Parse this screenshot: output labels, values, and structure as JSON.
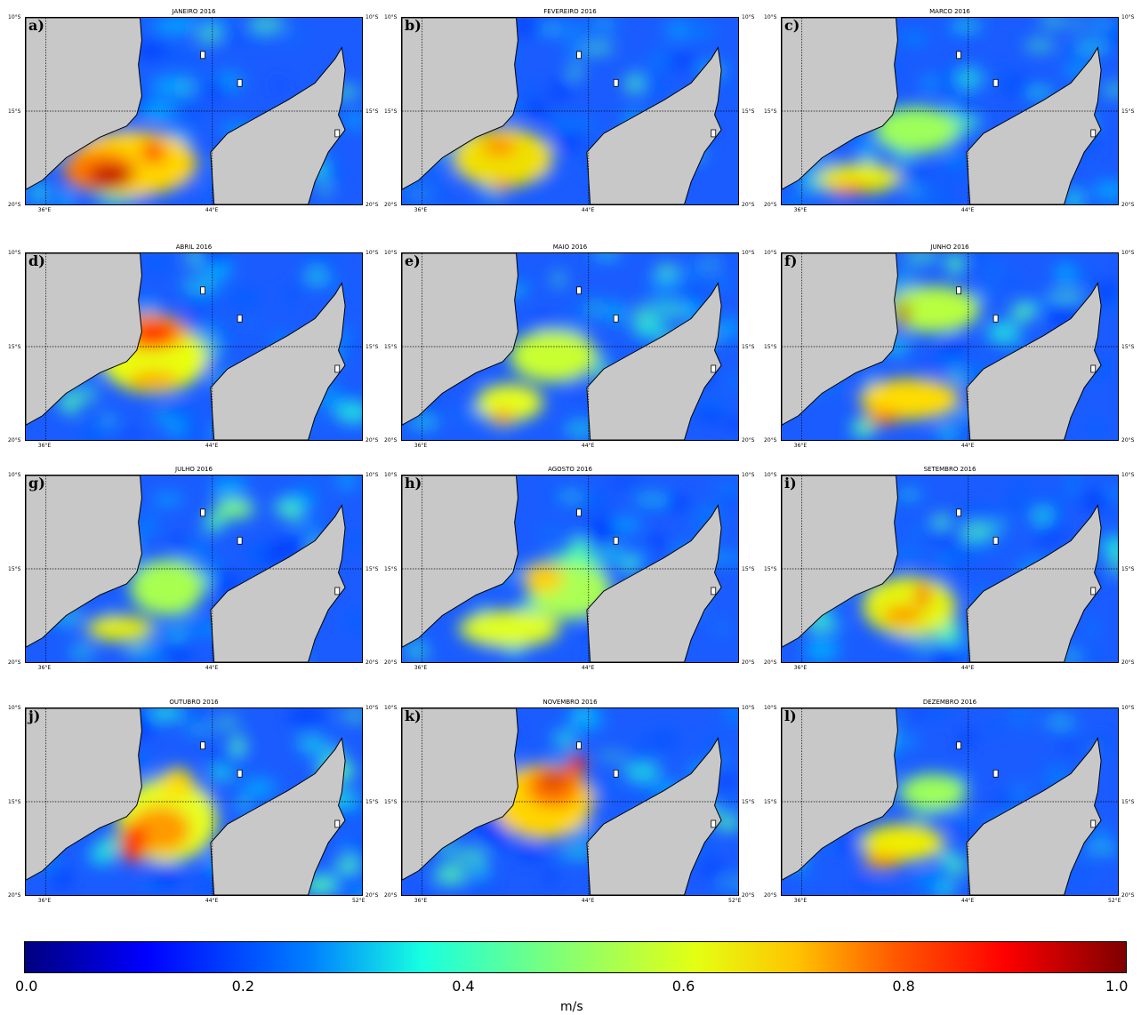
{
  "panels": [
    {
      "label": "a)",
      "title": "JANEIRO 2016",
      "hot": [
        [
          0.25,
          0.85,
          0.13,
          0.13,
          "#c00000"
        ],
        [
          0.22,
          0.82,
          0.22,
          0.22,
          "#ff7a00"
        ],
        [
          0.38,
          0.72,
          0.07,
          0.12,
          "#ff3a00"
        ],
        [
          0.32,
          0.78,
          0.38,
          0.35,
          "#ffd500"
        ]
      ]
    },
    {
      "label": "b)",
      "title": "FEVEREIRO 2016",
      "hot": [
        [
          0.3,
          0.9,
          0.04,
          0.06,
          "#ff2a00"
        ],
        [
          0.29,
          0.69,
          0.1,
          0.1,
          "#ff8a00"
        ],
        [
          0.3,
          0.75,
          0.3,
          0.32,
          "#f0e000"
        ]
      ]
    },
    {
      "label": "c)",
      "title": "MARCO 2016",
      "hot": [
        [
          0.2,
          0.92,
          0.12,
          0.06,
          "#ff6a00"
        ],
        [
          0.23,
          0.86,
          0.25,
          0.16,
          "#eaf000"
        ],
        [
          0.4,
          0.6,
          0.25,
          0.25,
          "#9dff5a"
        ]
      ]
    },
    {
      "label": "d)",
      "title": "ABRIL 2016",
      "hot": [
        [
          0.38,
          0.43,
          0.13,
          0.13,
          "#ff2a00"
        ],
        [
          0.37,
          0.42,
          0.22,
          0.2,
          "#ff9a00"
        ],
        [
          0.38,
          0.68,
          0.15,
          0.1,
          "#ffaa00"
        ],
        [
          0.38,
          0.56,
          0.32,
          0.38,
          "#e8ff10"
        ]
      ]
    },
    {
      "label": "e)",
      "title": "MAIO 2016",
      "hot": [
        [
          0.3,
          0.88,
          0.07,
          0.08,
          "#ff8a00"
        ],
        [
          0.32,
          0.8,
          0.2,
          0.2,
          "#e6ff1a"
        ],
        [
          0.45,
          0.55,
          0.26,
          0.28,
          "#c8ff30"
        ]
      ]
    },
    {
      "label": "f)",
      "title": "JUNHO 2016",
      "hot": [
        [
          0.36,
          0.33,
          0.035,
          0.16,
          "#b00000"
        ],
        [
          0.3,
          0.88,
          0.1,
          0.08,
          "#ff7a00"
        ],
        [
          0.38,
          0.78,
          0.3,
          0.22,
          "#ffdd00"
        ],
        [
          0.45,
          0.3,
          0.28,
          0.25,
          "#b8ff40"
        ]
      ]
    },
    {
      "label": "g)",
      "title": "JULHO 2016",
      "hot": [
        [
          0.28,
          0.82,
          0.2,
          0.14,
          "#e6f000"
        ],
        [
          0.42,
          0.6,
          0.22,
          0.3,
          "#a8ff50"
        ],
        [
          0.62,
          0.18,
          0.12,
          0.1,
          "#7dff7a"
        ]
      ]
    },
    {
      "label": "h)",
      "title": "AGOSTO 2016",
      "hot": [
        [
          0.42,
          0.55,
          0.12,
          0.16,
          "#ffd000"
        ],
        [
          0.32,
          0.82,
          0.3,
          0.2,
          "#e0ff20"
        ],
        [
          0.5,
          0.62,
          0.25,
          0.3,
          "#aaff55"
        ]
      ]
    },
    {
      "label": "i)",
      "title": "SETEMBRO 2016",
      "hot": [
        [
          0.42,
          0.64,
          0.04,
          0.13,
          "#ff2000"
        ],
        [
          0.36,
          0.75,
          0.12,
          0.1,
          "#ff9500"
        ],
        [
          0.38,
          0.7,
          0.28,
          0.32,
          "#e5f510"
        ]
      ]
    },
    {
      "label": "j)",
      "title": "OUTUBRO 2016",
      "hot": [
        [
          0.32,
          0.72,
          0.08,
          0.22,
          "#ff3000"
        ],
        [
          0.4,
          0.65,
          0.18,
          0.25,
          "#ff9a00"
        ],
        [
          0.45,
          0.4,
          0.1,
          0.16,
          "#ffdd00"
        ],
        [
          0.42,
          0.6,
          0.3,
          0.45,
          "#e6ff20"
        ]
      ]
    },
    {
      "label": "k)",
      "title": "NOVEMBRO 2016",
      "hot": [
        [
          0.45,
          0.38,
          0.07,
          0.06,
          "#b00000"
        ],
        [
          0.52,
          0.3,
          0.05,
          0.12,
          "#ff2000"
        ],
        [
          0.45,
          0.42,
          0.16,
          0.22,
          "#ff7000"
        ],
        [
          0.42,
          0.5,
          0.3,
          0.4,
          "#ffd500"
        ]
      ]
    },
    {
      "label": "l)",
      "title": "DEZEMBRO 2016",
      "hot": [
        [
          0.3,
          0.82,
          0.12,
          0.08,
          "#ff9a00"
        ],
        [
          0.36,
          0.72,
          0.25,
          0.2,
          "#f0f000"
        ],
        [
          0.45,
          0.45,
          0.2,
          0.2,
          "#9dff5a"
        ]
      ]
    }
  ],
  "axes": {
    "lat_top": "10°S",
    "lat_mid": "15°S",
    "lat_bottom": "20°S",
    "lon_left": "36°E",
    "lon_mid": "44°E",
    "lon_right": "52°E"
  },
  "colorbar": {
    "ticks": [
      "0.0",
      "0.2",
      "0.4",
      "0.6",
      "0.8",
      "1.0"
    ],
    "unit": "m/s",
    "colors": [
      "#00007f",
      "#0000ff",
      "#0080ff",
      "#17ffe1",
      "#7dff7a",
      "#e4ff13",
      "#ffc400",
      "#ff5900",
      "#ff0000",
      "#7f0000"
    ]
  },
  "colors": {
    "land": "#c8c8c8",
    "ocean_base": "#1a5cff"
  }
}
